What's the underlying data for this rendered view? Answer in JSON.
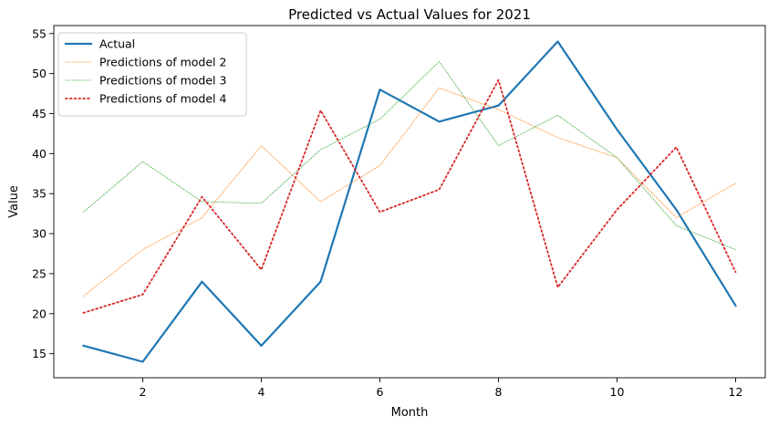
{
  "chart_data": {
    "type": "line",
    "title": "Predicted vs Actual Values for 2021",
    "xlabel": "Month",
    "ylabel": "Value",
    "xlim": [
      0.5,
      12.5
    ],
    "ylim": [
      12,
      56
    ],
    "xticks": [
      2,
      4,
      6,
      8,
      10,
      12
    ],
    "yticks": [
      15,
      20,
      25,
      30,
      35,
      40,
      45,
      50,
      55
    ],
    "grid": false,
    "legend_position": "top-left",
    "x": [
      1,
      2,
      3,
      4,
      5,
      6,
      7,
      8,
      9,
      10,
      11,
      12
    ],
    "series": [
      {
        "name": "Actual",
        "color": "#1f77b4",
        "style": "solid",
        "width": 2.2,
        "values": [
          16,
          14,
          24,
          16,
          24,
          48,
          44,
          46,
          54,
          43,
          33,
          21
        ]
      },
      {
        "name": "Predictions of model 2",
        "color": "#ff7f0e",
        "style": "dotted-thin",
        "width": 0.8,
        "values": [
          22.2,
          28,
          32,
          41,
          34,
          38.5,
          48.2,
          45.5,
          42,
          39.5,
          32,
          36.3
        ]
      },
      {
        "name": "Predictions of model 3",
        "color": "#2ca02c",
        "style": "dotted-thin",
        "width": 0.8,
        "values": [
          32.7,
          39,
          34,
          33.8,
          40.5,
          44.3,
          51.5,
          41,
          44.8,
          39.5,
          31,
          28
        ]
      },
      {
        "name": "Predictions of model 4",
        "color": "#d62728",
        "style": "dotted",
        "width": 1.8,
        "values": [
          20.1,
          22.4,
          34.6,
          25.5,
          45.4,
          32.7,
          35.5,
          49.2,
          23.3,
          33,
          40.8,
          25.2
        ]
      }
    ]
  }
}
